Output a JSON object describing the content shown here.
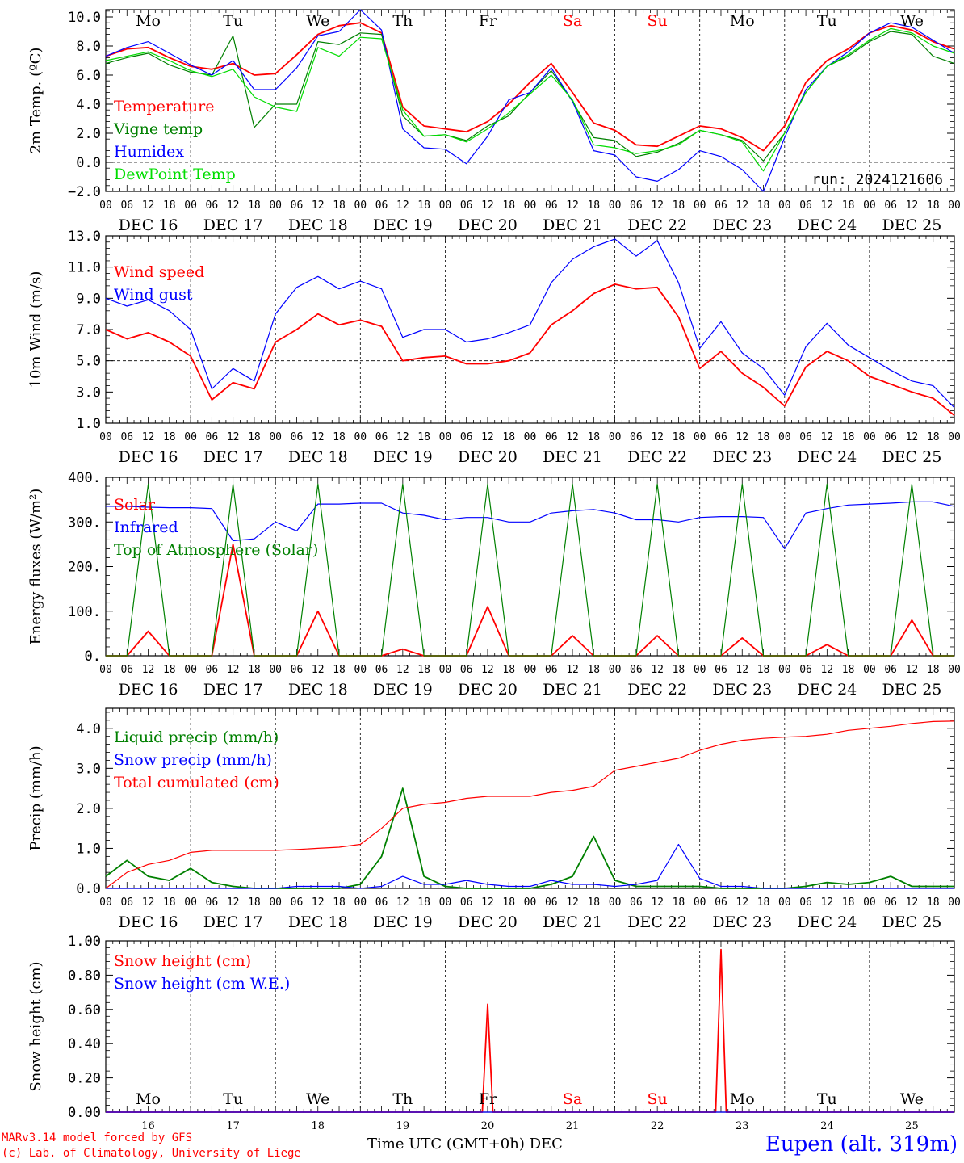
{
  "meta": {
    "model_credit": "MARv3.14 model forced by GFS",
    "copyright": "(c) Lab. of Climatology, University of Liege",
    "station": "Eupen (alt. 319m)",
    "run_label": "run: 2024121606",
    "time_axis_label": "Time UTC (GMT+0h)",
    "month_label": "DEC"
  },
  "days": {
    "weekdays": [
      "Mo",
      "Tu",
      "We",
      "Th",
      "Fr",
      "Sa",
      "Su",
      "Mo",
      "Tu",
      "We"
    ],
    "weekend": [
      false,
      false,
      false,
      false,
      false,
      true,
      true,
      false,
      false,
      false
    ],
    "dates": [
      "DEC 16",
      "DEC 17",
      "DEC 18",
      "DEC 19",
      "DEC 20",
      "DEC 21",
      "DEC 22",
      "DEC 23",
      "DEC 24",
      "DEC 25"
    ],
    "day_numbers": [
      "16",
      "17",
      "18",
      "19",
      "20",
      "21",
      "22",
      "23",
      "24",
      "25"
    ],
    "hour_ticks": [
      "00",
      "06",
      "12",
      "18"
    ],
    "end_tick": "00"
  },
  "colors": {
    "red": "#ff0000",
    "green": "#008000",
    "blue": "#0000ff",
    "lightgreen": "#00dd00",
    "weekend": "#ff0000"
  },
  "chart_data": [
    {
      "type": "line",
      "ylabel": "2m Temp. (ºC)",
      "ylim": [
        -2,
        10.5
      ],
      "yticks": [
        -2,
        0,
        2,
        4,
        6,
        8,
        10
      ],
      "ytick_labels": [
        "−2.0",
        "0.0",
        "2.0",
        "4.0",
        "6.0",
        "8.0",
        "10.0"
      ],
      "ref_line": 0,
      "x_hours": [
        0,
        6,
        12,
        18,
        24,
        30,
        36,
        42,
        48,
        54,
        60,
        66,
        72,
        78,
        84,
        90,
        96,
        102,
        108,
        114,
        120,
        126,
        132,
        138,
        144,
        150,
        156,
        162,
        168,
        174,
        180,
        186,
        192,
        198,
        204,
        210,
        216,
        222,
        228,
        234,
        240
      ],
      "series": [
        {
          "name": "Temperature",
          "color": "#ff0000",
          "values": [
            7.3,
            7.8,
            7.9,
            7.2,
            6.6,
            6.4,
            6.8,
            6.0,
            6.1,
            7.4,
            8.8,
            9.4,
            9.6,
            8.9,
            3.8,
            2.5,
            2.3,
            2.1,
            2.8,
            4.0,
            5.5,
            6.8,
            4.8,
            2.7,
            2.2,
            1.2,
            1.1,
            1.8,
            2.5,
            2.3,
            1.7,
            0.8,
            2.5,
            5.5,
            7.0,
            7.8,
            8.9,
            9.4,
            9.1,
            8.3,
            7.8
          ]
        },
        {
          "name": "Vigne temp",
          "color": "#008000",
          "values": [
            6.8,
            7.2,
            7.5,
            6.7,
            6.2,
            6.0,
            8.7,
            2.4,
            4.0,
            4.0,
            8.3,
            8.1,
            8.9,
            8.8,
            3.2,
            1.8,
            1.9,
            1.5,
            2.5,
            3.2,
            4.8,
            6.3,
            4.2,
            1.7,
            1.5,
            0.4,
            0.7,
            1.3,
            2.2,
            1.9,
            1.5,
            0.1,
            2.0,
            4.8,
            6.6,
            7.3,
            8.3,
            9.0,
            8.8,
            7.3,
            6.8
          ]
        },
        {
          "name": "Humidex",
          "color": "#0000ff",
          "values": [
            7.3,
            7.9,
            8.3,
            7.5,
            6.7,
            6.0,
            7.0,
            5.0,
            5.0,
            6.5,
            8.7,
            9.0,
            10.5,
            9.1,
            2.3,
            1.0,
            0.9,
            -0.1,
            1.8,
            4.3,
            4.8,
            6.5,
            4.2,
            0.8,
            0.5,
            -1.0,
            -1.3,
            -0.5,
            0.8,
            0.4,
            -0.5,
            -2.0,
            1.7,
            5.0,
            6.6,
            7.6,
            8.9,
            9.6,
            9.3,
            8.4,
            7.5
          ]
        },
        {
          "name": "DewPoint Temp",
          "color": "#00dd00",
          "values": [
            7.0,
            7.3,
            7.6,
            7.0,
            6.3,
            5.9,
            6.4,
            4.5,
            3.8,
            3.5,
            7.9,
            7.3,
            8.6,
            8.5,
            3.6,
            1.8,
            1.9,
            1.4,
            2.3,
            3.4,
            4.7,
            6.0,
            4.3,
            1.2,
            1.0,
            0.6,
            0.8,
            1.2,
            2.2,
            1.9,
            1.4,
            -0.6,
            2.0,
            4.8,
            6.6,
            7.4,
            8.4,
            9.2,
            8.9,
            8.0,
            7.5
          ]
        }
      ]
    },
    {
      "type": "line",
      "ylabel": "10m Wind (m/s)",
      "ylim": [
        1,
        13
      ],
      "yticks": [
        1,
        3,
        5,
        7,
        9,
        11,
        13
      ],
      "ytick_labels": [
        "1.0",
        "3.0",
        "5.0",
        "7.0",
        "9.0",
        "11.0",
        "13.0"
      ],
      "ref_line": 5,
      "x_hours": [
        0,
        6,
        12,
        18,
        24,
        30,
        36,
        42,
        48,
        54,
        60,
        66,
        72,
        78,
        84,
        90,
        96,
        102,
        108,
        114,
        120,
        126,
        132,
        138,
        144,
        150,
        156,
        162,
        168,
        174,
        180,
        186,
        192,
        198,
        204,
        210,
        216,
        222,
        228,
        234,
        240
      ],
      "series": [
        {
          "name": "Wind speed",
          "color": "#ff0000",
          "values": [
            7.0,
            6.4,
            6.8,
            6.2,
            5.3,
            2.5,
            3.6,
            3.2,
            6.2,
            7.0,
            8.0,
            7.3,
            7.6,
            7.2,
            5.0,
            5.2,
            5.3,
            4.8,
            4.8,
            5.0,
            5.5,
            7.3,
            8.2,
            9.3,
            9.9,
            9.6,
            9.7,
            7.8,
            4.5,
            5.6,
            4.2,
            3.3,
            2.1,
            4.6,
            5.6,
            5.0,
            4.0,
            3.5,
            3.0,
            2.6,
            1.5
          ]
        },
        {
          "name": "Wind gust",
          "color": "#0000ff",
          "values": [
            9.0,
            8.5,
            8.9,
            8.2,
            7.0,
            3.2,
            4.5,
            3.7,
            8.0,
            9.7,
            10.4,
            9.6,
            10.1,
            9.6,
            6.5,
            7.0,
            7.0,
            6.2,
            6.4,
            6.8,
            7.3,
            10.0,
            11.5,
            12.3,
            12.8,
            11.7,
            12.7,
            10.0,
            5.8,
            7.5,
            5.5,
            4.5,
            2.8,
            5.9,
            7.4,
            6.0,
            5.2,
            4.4,
            3.7,
            3.4,
            2.0
          ]
        }
      ]
    },
    {
      "type": "line",
      "ylabel": "Energy fluxes (W/m²)",
      "ylim": [
        0,
        400
      ],
      "yticks": [
        0,
        100,
        200,
        300,
        400
      ],
      "ytick_labels": [
        "0.",
        "100.",
        "200.",
        "300.",
        "400."
      ],
      "x_hours": [
        0,
        6,
        12,
        18,
        24,
        30,
        36,
        42,
        48,
        54,
        60,
        66,
        72,
        78,
        84,
        90,
        96,
        102,
        108,
        114,
        120,
        126,
        132,
        138,
        144,
        150,
        156,
        162,
        168,
        174,
        180,
        186,
        192,
        198,
        204,
        210,
        216,
        222,
        228,
        234,
        240
      ],
      "series": [
        {
          "name": "Solar",
          "color": "#ff0000",
          "values": [
            0,
            0,
            55,
            0,
            0,
            0,
            250,
            0,
            0,
            0,
            100,
            0,
            0,
            0,
            15,
            0,
            0,
            0,
            110,
            0,
            0,
            0,
            45,
            0,
            0,
            0,
            45,
            0,
            0,
            0,
            40,
            0,
            0,
            0,
            25,
            0,
            0,
            0,
            80,
            0,
            0
          ]
        },
        {
          "name": "Infrared",
          "color": "#0000ff",
          "values": [
            335,
            335,
            333,
            332,
            332,
            330,
            258,
            262,
            300,
            280,
            340,
            340,
            342,
            342,
            320,
            315,
            305,
            310,
            310,
            300,
            300,
            320,
            325,
            328,
            320,
            305,
            305,
            300,
            310,
            312,
            312,
            310,
            240,
            320,
            330,
            338,
            340,
            342,
            345,
            345,
            335
          ]
        },
        {
          "name": "Top of Atmosphere (Solar)",
          "color": "#008000",
          "values": [
            0,
            0,
            385,
            0,
            0,
            0,
            385,
            0,
            0,
            0,
            385,
            0,
            0,
            0,
            385,
            0,
            0,
            0,
            385,
            0,
            0,
            0,
            385,
            0,
            0,
            0,
            385,
            0,
            0,
            0,
            385,
            0,
            0,
            0,
            385,
            0,
            0,
            0,
            385,
            0,
            0
          ]
        }
      ]
    },
    {
      "type": "line",
      "ylabel": "Precip (mm/h)",
      "ylim": [
        0,
        4.5
      ],
      "yticks": [
        0,
        1,
        2,
        3,
        4
      ],
      "ytick_labels": [
        "0.0",
        "1.0",
        "2.0",
        "3.0",
        "4.0"
      ],
      "x_hours": [
        0,
        6,
        12,
        18,
        24,
        30,
        36,
        42,
        48,
        54,
        60,
        66,
        72,
        78,
        84,
        90,
        96,
        102,
        108,
        114,
        120,
        126,
        132,
        138,
        144,
        150,
        156,
        162,
        168,
        174,
        180,
        186,
        192,
        198,
        204,
        210,
        216,
        222,
        228,
        234,
        240
      ],
      "series": [
        {
          "name": "Liquid precip (mm/h)",
          "color": "#008000",
          "values": [
            0.3,
            0.7,
            0.3,
            0.2,
            0.5,
            0.15,
            0.05,
            0,
            0,
            0,
            0,
            0,
            0.1,
            0.8,
            2.5,
            0.3,
            0.05,
            0,
            0,
            0,
            0,
            0.1,
            0.3,
            1.3,
            0.2,
            0.05,
            0.05,
            0.05,
            0.05,
            0,
            0,
            0,
            0,
            0.05,
            0.15,
            0.1,
            0.15,
            0.3,
            0.05,
            0.05,
            0.05
          ]
        },
        {
          "name": "Snow precip (mm/h)",
          "color": "#0000ff",
          "values": [
            0,
            0,
            0,
            0,
            0,
            0,
            0,
            0,
            0,
            0.05,
            0.05,
            0.05,
            0,
            0.05,
            0.3,
            0.1,
            0.1,
            0.2,
            0.1,
            0.05,
            0.05,
            0.2,
            0.1,
            0.1,
            0.05,
            0.1,
            0.2,
            1.1,
            0.25,
            0.05,
            0.05,
            0,
            0,
            0,
            0,
            0,
            0,
            0,
            0,
            0,
            0
          ]
        },
        {
          "name": "Total cumulated (cm)",
          "color": "#ff0000",
          "values": [
            0,
            0.4,
            0.6,
            0.7,
            0.9,
            0.95,
            0.95,
            0.95,
            0.95,
            0.97,
            1.0,
            1.03,
            1.1,
            1.5,
            2.0,
            2.1,
            2.15,
            2.25,
            2.3,
            2.3,
            2.3,
            2.4,
            2.45,
            2.55,
            2.95,
            3.05,
            3.15,
            3.25,
            3.45,
            3.6,
            3.7,
            3.75,
            3.78,
            3.8,
            3.85,
            3.95,
            4.0,
            4.05,
            4.12,
            4.17,
            4.18
          ]
        }
      ]
    },
    {
      "type": "line",
      "ylabel": "Snow height (cm)",
      "ylim": [
        0,
        1
      ],
      "yticks": [
        0,
        0.2,
        0.4,
        0.6,
        0.8,
        1.0
      ],
      "ytick_labels": [
        "0.00",
        "0.20",
        "0.40",
        "0.60",
        "0.80",
        "1.00"
      ],
      "x_hours": [
        0,
        106.5,
        108,
        109.5,
        172.5,
        174,
        175.5,
        240
      ],
      "series": [
        {
          "name": "Snow height (cm)",
          "color": "#ff0000",
          "values": [
            0,
            0,
            0.63,
            0,
            0,
            0.95,
            0,
            0
          ]
        },
        {
          "name": "Snow height (cm W.E.)",
          "color": "#0000ff",
          "values": [
            0,
            0,
            0,
            0,
            0,
            0,
            0,
            0
          ]
        }
      ]
    }
  ]
}
